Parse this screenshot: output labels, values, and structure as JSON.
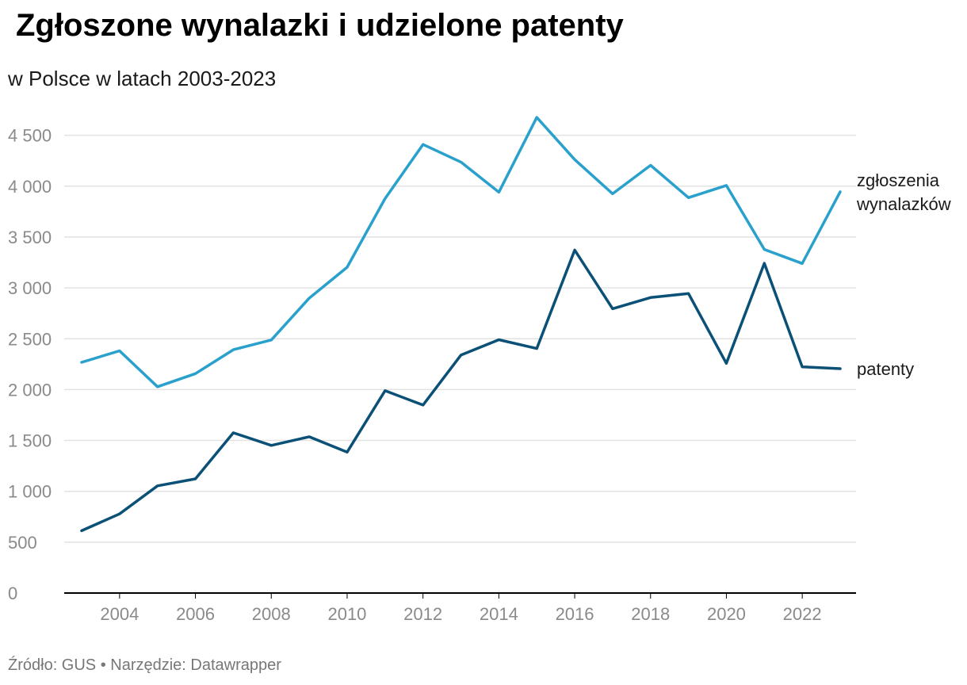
{
  "header": {
    "title": "Zgłoszone wynalazki i udzielone patenty",
    "subtitle": "w Polsce w latach 2003-2023"
  },
  "footer": {
    "source": "Źródło: GUS • Narzędzie: Datawrapper"
  },
  "colors": {
    "applications": "#2aa1cc",
    "patents": "#0b5077",
    "grid": "#e2e2e2",
    "axis": "#000000",
    "tick_label": "#8a8a8a"
  },
  "chart_data": {
    "type": "line",
    "title": "Zgłoszone wynalazki i udzielone patenty",
    "subtitle": "w Polsce w latach 2003-2023",
    "x": [
      2003,
      2004,
      2005,
      2006,
      2007,
      2008,
      2009,
      2010,
      2011,
      2012,
      2013,
      2014,
      2015,
      2016,
      2017,
      2018,
      2019,
      2020,
      2021,
      2022,
      2023
    ],
    "xlim": [
      2003,
      2023
    ],
    "ylim": [
      0,
      4700
    ],
    "y_ticks": [
      0,
      500,
      1000,
      1500,
      2000,
      2500,
      3000,
      3500,
      4000,
      4500
    ],
    "y_tick_labels": [
      "0",
      "500",
      "1 000",
      "1 500",
      "2 000",
      "2 500",
      "3 000",
      "3 500",
      "4 000",
      "4 500"
    ],
    "x_ticks": [
      2004,
      2006,
      2008,
      2010,
      2012,
      2014,
      2016,
      2018,
      2020,
      2022
    ],
    "x_tick_labels": [
      "2004",
      "2006",
      "2008",
      "2010",
      "2012",
      "2014",
      "2016",
      "2018",
      "2020",
      "2022"
    ],
    "grid": true,
    "legend": "direct labels at line ends (right)",
    "series": [
      {
        "key": "applications",
        "name_lines": [
          "zgłoszenia",
          "wynalazków"
        ],
        "values": [
          2268,
          2381,
          2028,
          2157,
          2392,
          2488,
          2899,
          3203,
          3878,
          4410,
          4237,
          3941,
          4676,
          4261,
          3925,
          4205,
          3887,
          4007,
          3378,
          3240,
          3945
        ]
      },
      {
        "key": "patents",
        "name_lines": [
          "patenty"
        ],
        "values": [
          613,
          778,
          1054,
          1122,
          1575,
          1451,
          1536,
          1385,
          1989,
          1848,
          2339,
          2490,
          2404,
          3372,
          2795,
          2905,
          2945,
          2258,
          3242,
          2224,
          2206
        ]
      }
    ]
  }
}
